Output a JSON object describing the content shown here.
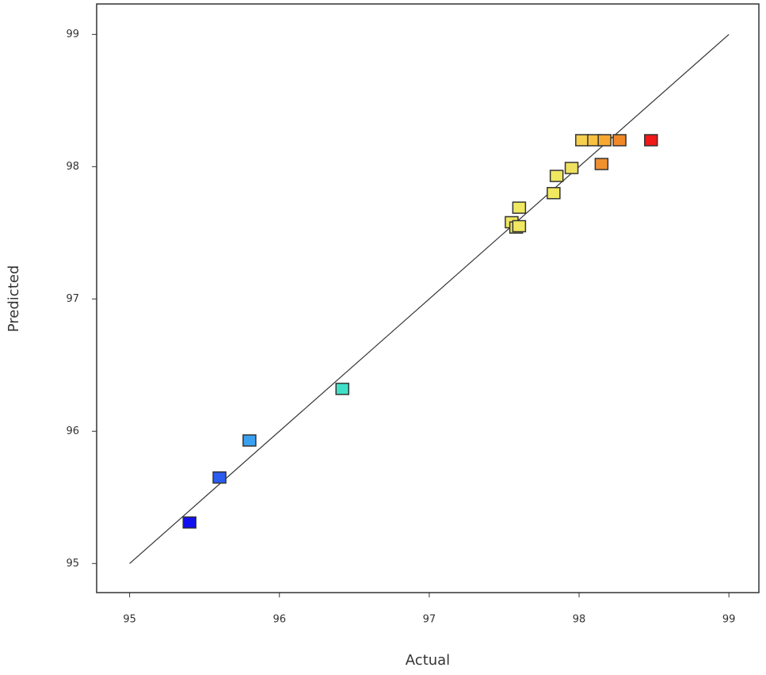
{
  "chart_data": {
    "type": "scatter",
    "x_label": "Actual",
    "y_label": "Predicted",
    "x": [
      95.4,
      95.6,
      95.8,
      96.42,
      97.55,
      97.58,
      97.6,
      97.6,
      97.83,
      97.85,
      97.95,
      98.02,
      98.1,
      98.17,
      98.27,
      98.15,
      98.48
    ],
    "values": [
      95.31,
      95.65,
      95.93,
      96.32,
      97.58,
      97.54,
      97.55,
      97.69,
      97.8,
      97.93,
      97.99,
      98.2,
      98.2,
      98.2,
      98.2,
      98.02,
      98.2
    ],
    "colors": [
      "#1010f0",
      "#2a5cf0",
      "#3aa0f0",
      "#40e0c8",
      "#f0e860",
      "#f0e860",
      "#f0e860",
      "#f0e860",
      "#f0e860",
      "#f0e860",
      "#f0e060",
      "#f8d050",
      "#f8c040",
      "#f8a830",
      "#f08828",
      "#f09030",
      "#f01818"
    ],
    "fit_line": {
      "x": [
        95,
        99
      ],
      "y": [
        95,
        99
      ]
    },
    "xlim": [
      94.78,
      99.2
    ],
    "ylim": [
      94.78,
      99.23
    ],
    "xticks": [
      95,
      96,
      97,
      98,
      99
    ],
    "yticks": [
      95,
      96,
      97,
      98,
      99
    ]
  }
}
